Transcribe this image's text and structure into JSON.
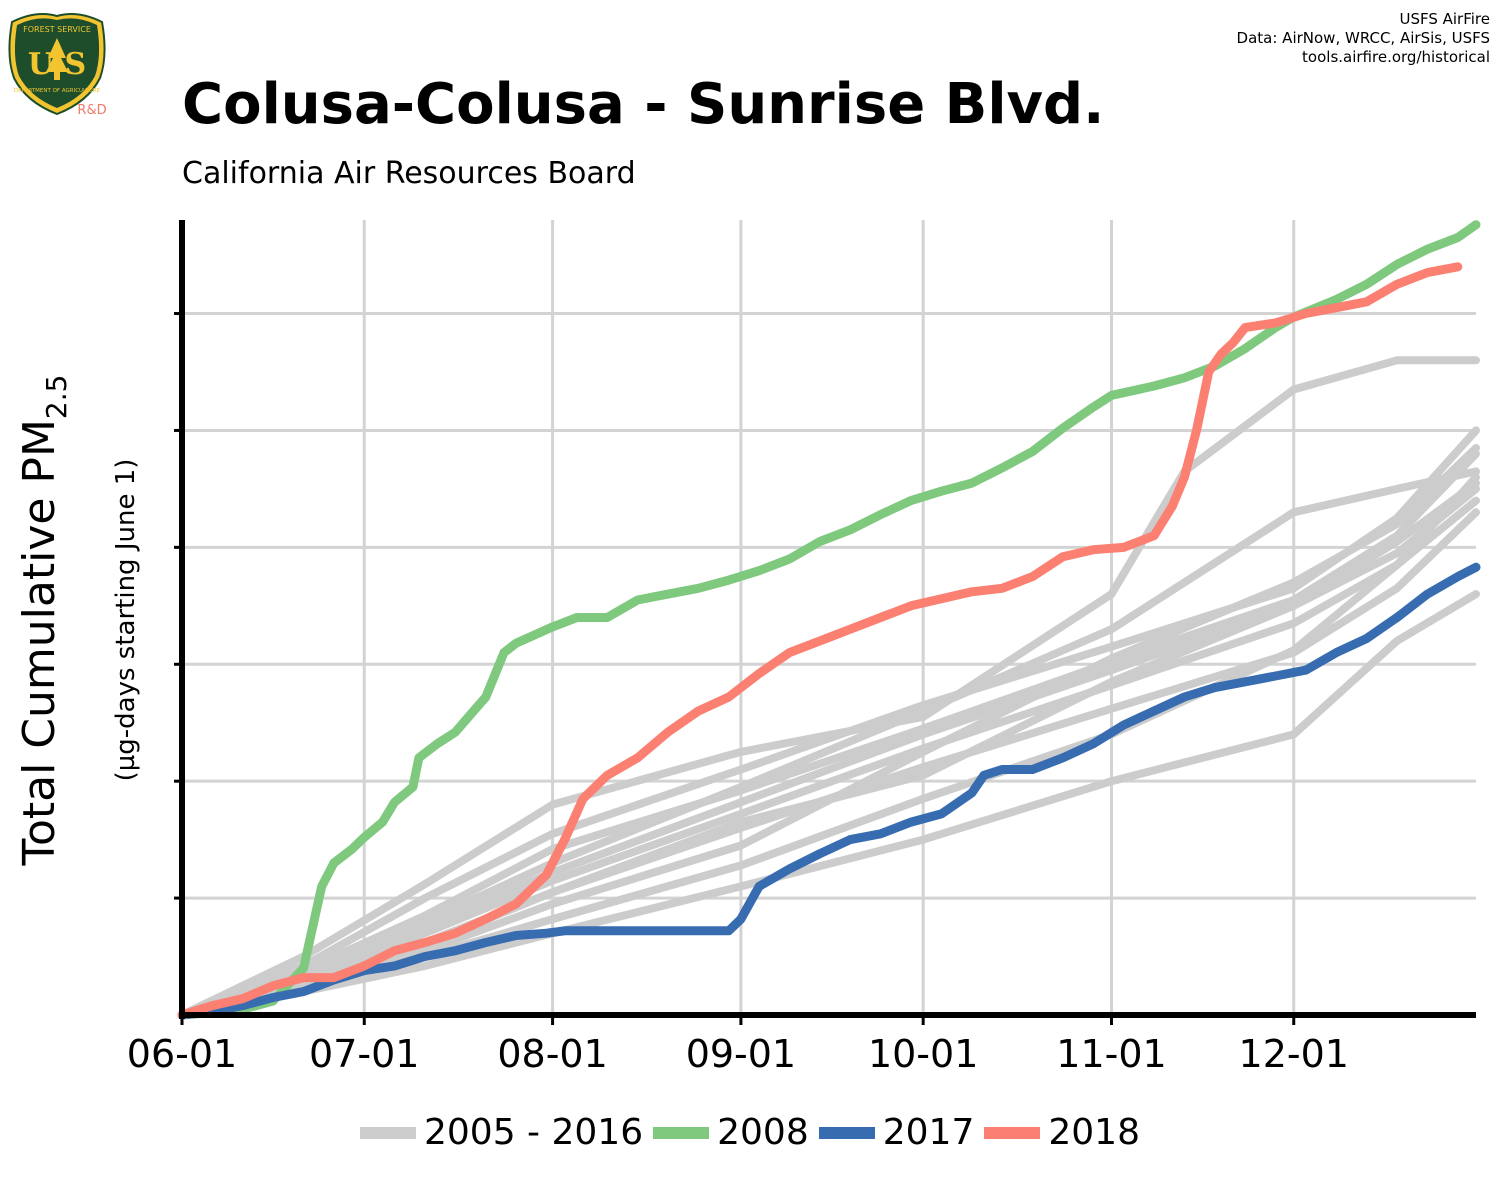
{
  "header": {
    "title": "Colusa-Colusa - Sunrise Blvd.",
    "subtitle": "California Air Resources Board",
    "credits": [
      "USFS AirFire",
      "Data: AirNow, WRCC, AirSis, USFS",
      "tools.airfire.org/historical"
    ]
  },
  "logo": {
    "top_text": "FOREST SERVICE",
    "letters": "U S",
    "bottom_text": "DEPARTMENT OF AGRICULTURE",
    "suffix": "R&D",
    "colors": {
      "shield": "#1e4d2b",
      "gold": "#f2c530",
      "suffix": "#f07b6b"
    }
  },
  "chart_data": {
    "type": "line",
    "title": "Colusa-Colusa - Sunrise Blvd.",
    "subtitle": "California Air Resources Board",
    "ylabel_main": "Total Cumulative PM",
    "ylabel_sub": "2.5",
    "ylabel_units": "(µg-days starting June 1)",
    "xlabel": "",
    "x_ticks": [
      "06-01",
      "07-01",
      "08-01",
      "09-01",
      "10-01",
      "11-01",
      "12-01"
    ],
    "x_tick_days": [
      0,
      30,
      61,
      92,
      122,
      153,
      183
    ],
    "xlim_days": [
      0,
      213
    ],
    "ylim": [
      0,
      6.8
    ],
    "y_tick_values": [
      1,
      2,
      3,
      4,
      5,
      6
    ],
    "y_tick_labels_shown": false,
    "grid": true,
    "legend_position": "bottom",
    "legend": [
      {
        "label": "2005 - 2016",
        "color": "#cccccc"
      },
      {
        "label": "2008",
        "color": "#7fc97f"
      },
      {
        "label": "2017",
        "color": "#386cb0"
      },
      {
        "label": "2018",
        "color": "#fb8072"
      }
    ],
    "series": [
      {
        "name": "2008",
        "color": "#7fc97f",
        "highlight": true,
        "x": [
          0,
          5,
          10,
          15,
          20,
          23,
          25,
          28,
          30,
          33,
          35,
          38,
          39,
          42,
          45,
          48,
          50,
          53,
          55,
          58,
          61,
          65,
          70,
          75,
          80,
          85,
          90,
          95,
          100,
          105,
          110,
          115,
          120,
          125,
          130,
          135,
          140,
          145,
          150,
          153,
          160,
          165,
          170,
          175,
          180,
          183,
          190,
          195,
          200,
          205,
          210,
          213
        ],
        "y": [
          0,
          0.02,
          0.05,
          0.12,
          0.4,
          1.1,
          1.3,
          1.42,
          1.52,
          1.65,
          1.82,
          1.95,
          2.2,
          2.32,
          2.42,
          2.6,
          2.72,
          3.1,
          3.18,
          3.25,
          3.32,
          3.4,
          3.4,
          3.55,
          3.6,
          3.65,
          3.72,
          3.8,
          3.9,
          4.05,
          4.15,
          4.28,
          4.4,
          4.48,
          4.55,
          4.68,
          4.82,
          5.02,
          5.2,
          5.3,
          5.38,
          5.45,
          5.55,
          5.7,
          5.88,
          5.97,
          6.12,
          6.25,
          6.42,
          6.55,
          6.65,
          6.76
        ]
      },
      {
        "name": "2017",
        "color": "#386cb0",
        "highlight": true,
        "x": [
          0,
          5,
          10,
          15,
          20,
          25,
          30,
          35,
          40,
          45,
          50,
          55,
          60,
          63,
          70,
          80,
          85,
          90,
          92,
          95,
          100,
          105,
          110,
          115,
          120,
          125,
          130,
          132,
          135,
          140,
          145,
          150,
          155,
          160,
          165,
          170,
          175,
          180,
          185,
          190,
          195,
          200,
          205,
          210,
          213
        ],
        "y": [
          0,
          0.03,
          0.08,
          0.15,
          0.2,
          0.3,
          0.38,
          0.42,
          0.5,
          0.55,
          0.62,
          0.68,
          0.7,
          0.72,
          0.72,
          0.72,
          0.72,
          0.72,
          0.82,
          1.1,
          1.25,
          1.38,
          1.5,
          1.55,
          1.65,
          1.72,
          1.9,
          2.05,
          2.1,
          2.1,
          2.2,
          2.32,
          2.48,
          2.6,
          2.72,
          2.8,
          2.85,
          2.9,
          2.95,
          3.1,
          3.22,
          3.4,
          3.6,
          3.75,
          3.83
        ]
      },
      {
        "name": "2018",
        "color": "#fb8072",
        "highlight": true,
        "x": [
          0,
          5,
          10,
          15,
          20,
          25,
          30,
          35,
          40,
          45,
          50,
          55,
          60,
          63,
          66,
          70,
          75,
          80,
          85,
          90,
          95,
          100,
          105,
          110,
          115,
          120,
          125,
          130,
          135,
          140,
          145,
          150,
          155,
          160,
          163,
          165,
          167,
          169,
          171,
          173,
          175,
          180,
          185,
          190,
          195,
          200,
          205,
          210
        ],
        "y": [
          0,
          0.08,
          0.14,
          0.25,
          0.32,
          0.32,
          0.42,
          0.55,
          0.62,
          0.7,
          0.82,
          0.95,
          1.2,
          1.5,
          1.85,
          2.05,
          2.2,
          2.42,
          2.6,
          2.72,
          2.92,
          3.1,
          3.2,
          3.3,
          3.4,
          3.5,
          3.56,
          3.62,
          3.65,
          3.75,
          3.92,
          3.98,
          4.0,
          4.1,
          4.35,
          4.6,
          5.0,
          5.5,
          5.65,
          5.75,
          5.88,
          5.92,
          6.0,
          6.05,
          6.1,
          6.25,
          6.35,
          6.4
        ]
      },
      {
        "name": "2005 - 2016",
        "color": "#cccccc",
        "x": [
          0,
          20,
          40,
          61,
          92,
          122,
          153,
          165,
          183,
          200,
          213
        ],
        "y": [
          0,
          0.5,
          1.12,
          1.8,
          2.25,
          2.55,
          3.6,
          4.65,
          5.35,
          5.6,
          5.6
        ]
      },
      {
        "name": "2005 - 2016",
        "color": "#cccccc",
        "x": [
          0,
          20,
          40,
          61,
          92,
          122,
          153,
          183,
          200,
          213
        ],
        "y": [
          0,
          0.42,
          1.0,
          1.55,
          2.1,
          2.65,
          3.15,
          3.65,
          4.25,
          5.0
        ]
      },
      {
        "name": "2005 - 2016",
        "color": "#cccccc",
        "x": [
          0,
          20,
          40,
          61,
          92,
          122,
          153,
          183,
          200,
          213
        ],
        "y": [
          0,
          0.38,
          0.85,
          1.42,
          1.92,
          2.45,
          3.02,
          3.55,
          4.1,
          4.8
        ]
      },
      {
        "name": "2005 - 2016",
        "color": "#cccccc",
        "x": [
          0,
          20,
          40,
          61,
          92,
          122,
          153,
          183,
          200,
          213
        ],
        "y": [
          0,
          0.35,
          0.8,
          1.3,
          1.95,
          2.6,
          3.3,
          4.3,
          4.5,
          4.65
        ]
      },
      {
        "name": "2005 - 2016",
        "color": "#cccccc",
        "x": [
          0,
          20,
          40,
          61,
          92,
          122,
          153,
          183,
          200,
          213
        ],
        "y": [
          0,
          0.33,
          0.75,
          1.22,
          1.82,
          2.4,
          2.95,
          3.5,
          4.05,
          4.55
        ]
      },
      {
        "name": "2005 - 2016",
        "color": "#cccccc",
        "x": [
          0,
          20,
          40,
          61,
          92,
          122,
          153,
          183,
          200,
          213
        ],
        "y": [
          0,
          0.3,
          0.7,
          1.15,
          1.72,
          2.28,
          2.82,
          3.35,
          3.85,
          4.4
        ]
      },
      {
        "name": "2005 - 2016",
        "color": "#cccccc",
        "x": [
          0,
          20,
          40,
          61,
          92,
          122,
          153,
          183,
          200,
          213
        ],
        "y": [
          0,
          0.28,
          0.62,
          1.05,
          1.6,
          2.12,
          2.62,
          3.1,
          3.65,
          4.3
        ]
      },
      {
        "name": "2005 - 2016",
        "color": "#cccccc",
        "x": [
          0,
          20,
          40,
          61,
          92,
          122,
          153,
          183,
          200,
          213
        ],
        "y": [
          0,
          0.22,
          0.5,
          0.82,
          1.28,
          1.85,
          2.4,
          3.12,
          3.85,
          4.6
        ]
      },
      {
        "name": "2005 - 2016",
        "color": "#cccccc",
        "x": [
          0,
          20,
          40,
          61,
          92,
          122,
          153,
          183,
          200,
          213
        ],
        "y": [
          0,
          0.2,
          0.42,
          0.7,
          1.1,
          1.5,
          2.0,
          2.4,
          3.2,
          3.6
        ]
      },
      {
        "name": "2005 - 2016",
        "color": "#cccccc",
        "x": [
          0,
          20,
          40,
          61,
          92,
          122,
          153,
          183,
          200,
          213
        ],
        "y": [
          0,
          0.28,
          0.6,
          1.05,
          1.65,
          2.05,
          2.85,
          3.5,
          3.95,
          4.5
        ]
      },
      {
        "name": "2005 - 2016",
        "color": "#cccccc",
        "x": [
          0,
          20,
          40,
          61,
          92,
          122,
          153,
          183,
          200,
          213
        ],
        "y": [
          0,
          0.25,
          0.55,
          0.95,
          1.45,
          2.25,
          3.05,
          3.7,
          4.2,
          4.85
        ]
      }
    ]
  }
}
